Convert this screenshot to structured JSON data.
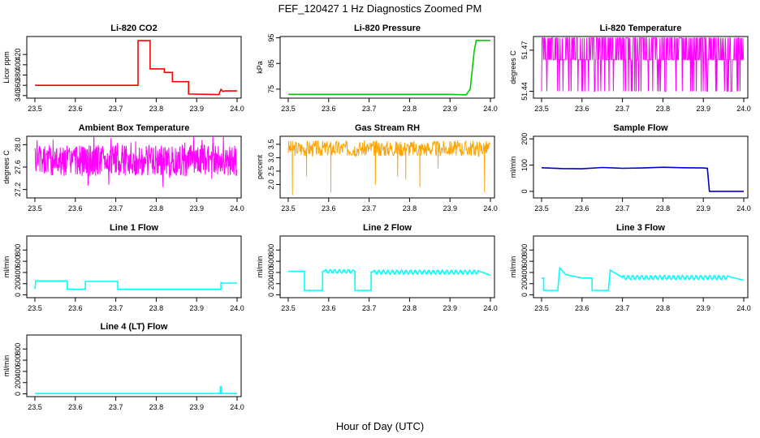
{
  "figure": {
    "title": "FEF_120427  1 Hz Diagnostics Zoomed PM",
    "xlabel": "Hour of Day (UTC)"
  },
  "chart_data": [
    {
      "id": "co2",
      "type": "line",
      "title": "Li-820 CO2",
      "ylabel": "Licor ppm",
      "color": "#ff0000",
      "xlim": [
        23.48,
        24.01
      ],
      "ylim": [
        335,
        455
      ],
      "xticks": [
        "23.5",
        "23.6",
        "23.7",
        "23.8",
        "23.9",
        "24.0"
      ],
      "yticks": [
        "340",
        "360",
        "380",
        "400",
        "420"
      ],
      "series": [
        {
          "name": "CO2",
          "x": [
            23.5,
            23.755,
            23.755,
            23.785,
            23.785,
            23.82,
            23.82,
            23.84,
            23.84,
            23.88,
            23.88,
            23.955,
            23.96,
            23.965,
            23.97,
            24.0
          ],
          "y": [
            360,
            360,
            447,
            447,
            392,
            392,
            385,
            385,
            367,
            367,
            343,
            342,
            352,
            348,
            349,
            349
          ]
        }
      ]
    },
    {
      "id": "pressure",
      "type": "line",
      "title": "Li-820 Pressure",
      "ylabel": "kPa",
      "color": "#00cc00",
      "xlim": [
        23.48,
        24.01
      ],
      "ylim": [
        71.5,
        95.5
      ],
      "xticks": [
        "23.5",
        "23.6",
        "23.7",
        "23.8",
        "23.9",
        "24.0"
      ],
      "yticks": [
        "75",
        "85",
        "95"
      ],
      "series": [
        {
          "name": "Pressure",
          "x": [
            23.5,
            23.9,
            23.94,
            23.95,
            23.96,
            23.965,
            24.0
          ],
          "y": [
            73,
            73,
            72.8,
            75,
            90,
            94,
            94
          ]
        }
      ]
    },
    {
      "id": "licor-temp",
      "type": "line",
      "title": "Li-820 Temperature",
      "ylabel": "degrees C",
      "color": "#ff00ff",
      "xlim": [
        23.48,
        24.01
      ],
      "ylim": [
        51.435,
        51.48
      ],
      "xticks": [
        "23.5",
        "23.6",
        "23.7",
        "23.8",
        "23.9",
        "24.0"
      ],
      "yticks": [
        "51.44",
        "51.47"
      ],
      "series": [
        {
          "name": "Temperature",
          "noise": "toggle",
          "seed": 11,
          "base": 51.463,
          "amp": 0.018,
          "x": [
            23.5,
            24.0
          ]
        }
      ]
    },
    {
      "id": "box-temp",
      "type": "line",
      "title": "Ambient Box Temperature",
      "ylabel": "degrees C",
      "color": "#ff00ff",
      "xlim": [
        23.48,
        24.01
      ],
      "ylim": [
        27.05,
        28.15
      ],
      "xticks": [
        "23.5",
        "23.6",
        "23.7",
        "23.8",
        "23.9",
        "24.0"
      ],
      "yticks": [
        "27.2",
        "27.6",
        "28.0"
      ],
      "series": [
        {
          "name": "Box Temp",
          "noise": "band",
          "seed": 5,
          "base": 27.72,
          "amp": 0.28,
          "x": [
            23.5,
            24.0
          ]
        }
      ]
    },
    {
      "id": "rh",
      "type": "scatter",
      "title": "Gas Stream RH",
      "ylabel": "percent",
      "color": "#ffa500",
      "xlim": [
        23.48,
        24.01
      ],
      "ylim": [
        1.5,
        3.8
      ],
      "xticks": [
        "23.5",
        "23.6",
        "23.7",
        "23.8",
        "23.9",
        "24.0"
      ],
      "yticks": [
        "2.0",
        "2.5",
        "3.0",
        "3.5"
      ],
      "series": [
        {
          "name": "RH",
          "noise": "dots",
          "seed": 3,
          "base": 3.35,
          "amp": 0.3,
          "x": [
            23.5,
            24.0
          ],
          "dips": [
            [
              23.51,
              1.6
            ],
            [
              23.545,
              2.3
            ],
            [
              23.605,
              1.7
            ],
            [
              23.715,
              2.0
            ],
            [
              23.77,
              2.3
            ],
            [
              23.79,
              2.2
            ],
            [
              23.825,
              1.9
            ],
            [
              23.87,
              2.6
            ],
            [
              23.985,
              1.7
            ]
          ]
        }
      ]
    },
    {
      "id": "sample-flow",
      "type": "line",
      "title": "Sample Flow",
      "ylabel": "ml/min",
      "color": "#0000cc",
      "xlim": [
        23.48,
        24.01
      ],
      "ylim": [
        -25,
        210
      ],
      "xticks": [
        "23.5",
        "23.6",
        "23.7",
        "23.8",
        "23.9",
        "24.0"
      ],
      "yticks": [
        "0",
        "100",
        "200"
      ],
      "series": [
        {
          "name": "Sample Flow",
          "x": [
            23.5,
            23.55,
            23.6,
            23.65,
            23.7,
            23.75,
            23.8,
            23.85,
            23.9,
            23.91,
            23.915,
            23.93,
            24.0
          ],
          "y": [
            90,
            87,
            86,
            91,
            88,
            89,
            92,
            90,
            89,
            88,
            0,
            0,
            0
          ]
        }
      ]
    },
    {
      "id": "line1",
      "type": "line",
      "title": "Line 1 Flow",
      "ylabel": "ml/min",
      "color": "#00ffff",
      "xlim": [
        23.48,
        24.01
      ],
      "ylim": [
        -50,
        1050
      ],
      "xticks": [
        "23.5",
        "23.6",
        "23.7",
        "23.8",
        "23.9",
        "24.0"
      ],
      "yticks": [
        "0",
        "200",
        "400",
        "600",
        "800"
      ],
      "series": [
        {
          "name": "Line 1",
          "x": [
            23.5,
            23.502,
            23.505,
            23.58,
            23.58,
            23.625,
            23.625,
            23.705,
            23.705,
            23.96,
            23.96,
            23.965,
            24.0
          ],
          "y": [
            100,
            250,
            250,
            250,
            100,
            100,
            240,
            240,
            100,
            100,
            220,
            210,
            210
          ]
        }
      ]
    },
    {
      "id": "line2",
      "type": "line",
      "title": "Line 2 Flow",
      "ylabel": "ml/min",
      "color": "#00ffff",
      "xlim": [
        23.48,
        24.01
      ],
      "ylim": [
        -50,
        1050
      ],
      "xticks": [
        "23.5",
        "23.6",
        "23.7",
        "23.8",
        "23.9",
        "24.0"
      ],
      "yticks": [
        "0",
        "200",
        "400",
        "600",
        "800"
      ],
      "series": [
        {
          "name": "Line 2",
          "x": [
            23.5,
            23.54,
            23.54,
            23.585,
            23.585,
            23.665,
            23.665,
            23.705,
            23.705,
            23.97,
            23.97,
            24.0
          ],
          "y": [
            420,
            420,
            80,
            80,
            420,
            420,
            80,
            80,
            410,
            410,
            350,
            350
          ],
          "wave": [
            [
              23.59,
              23.66,
              420,
              30
            ],
            [
              23.71,
              23.97,
              405,
              35
            ]
          ]
        }
      ]
    },
    {
      "id": "line3",
      "type": "line",
      "title": "Line 3 Flow",
      "ylabel": "ml/min",
      "color": "#00ffff",
      "xlim": [
        23.48,
        24.01
      ],
      "ylim": [
        -50,
        1050
      ],
      "xticks": [
        "23.5",
        "23.6",
        "23.7",
        "23.8",
        "23.9",
        "24.0"
      ],
      "yticks": [
        "0",
        "200",
        "400",
        "600",
        "800"
      ],
      "series": [
        {
          "name": "Line 3",
          "x": [
            23.5,
            23.505,
            23.505,
            23.54,
            23.545,
            23.56,
            23.6,
            23.625,
            23.625,
            23.665,
            23.67,
            23.7,
            23.75,
            23.96,
            23.96,
            24.0
          ],
          "y": [
            300,
            300,
            80,
            80,
            480,
            360,
            300,
            300,
            80,
            80,
            440,
            320,
            310,
            310,
            260,
            260
          ],
          "wave": [
            [
              23.7,
              23.96,
              310,
              35
            ]
          ]
        }
      ]
    },
    {
      "id": "line4",
      "type": "line",
      "title": "Line 4 (LT) Flow",
      "ylabel": "ml/min",
      "color": "#00ffff",
      "xlim": [
        23.48,
        24.01
      ],
      "ylim": [
        -50,
        1050
      ],
      "xticks": [
        "23.5",
        "23.6",
        "23.7",
        "23.8",
        "23.9",
        "24.0"
      ],
      "yticks": [
        "0",
        "200",
        "400",
        "600",
        "800"
      ],
      "series": [
        {
          "name": "Line 4",
          "x": [
            23.5,
            23.958,
            23.959,
            23.96,
            23.961,
            24.0
          ],
          "y": [
            5,
            5,
            130,
            130,
            5,
            5
          ]
        }
      ]
    }
  ]
}
